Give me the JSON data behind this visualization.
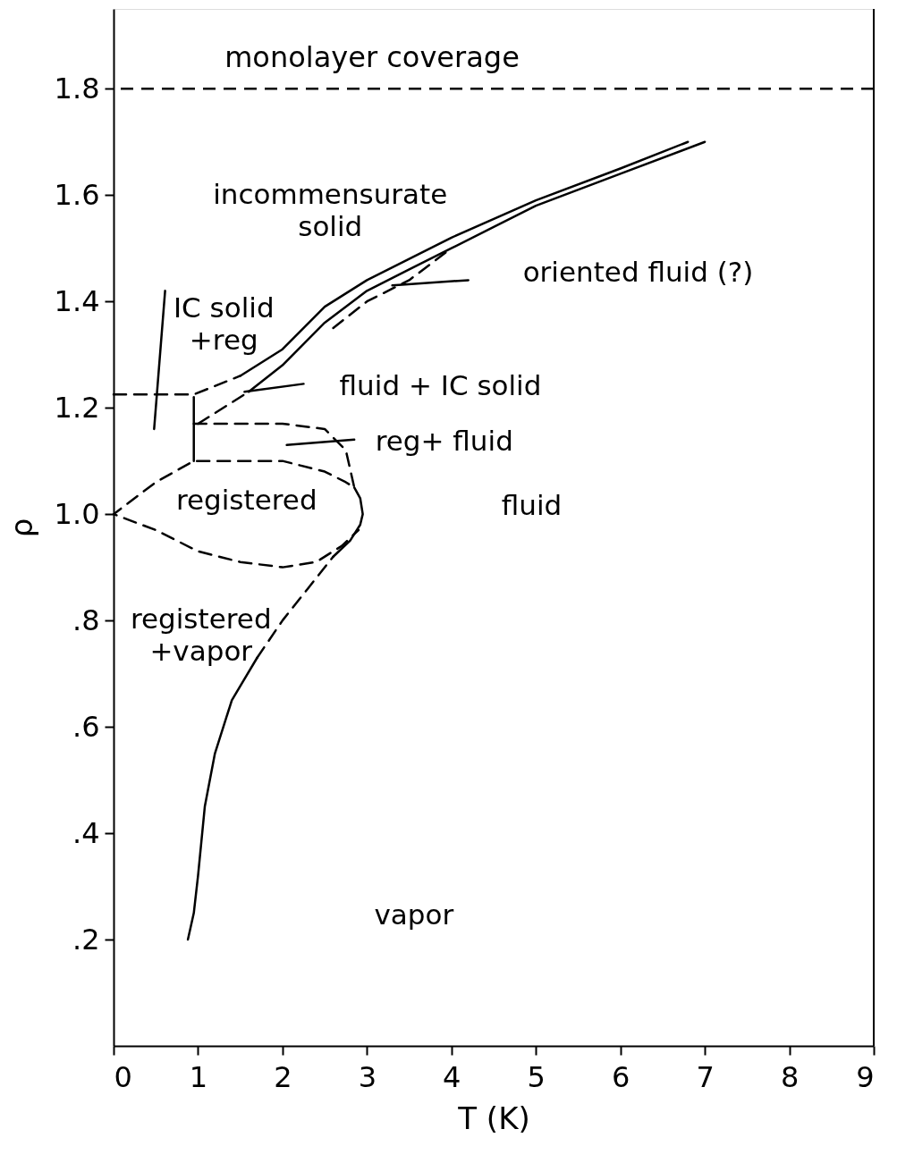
{
  "chart_data": {
    "type": "line",
    "xlabel": "T (K)",
    "ylabel": "ρ",
    "xlim": [
      0,
      9
    ],
    "ylim": [
      0,
      1.95
    ],
    "xticks": [
      0,
      1,
      2,
      3,
      4,
      5,
      6,
      7,
      8,
      9
    ],
    "yticks": [
      {
        "value": 0.2,
        "label": ".2"
      },
      {
        "value": 0.4,
        "label": ".4"
      },
      {
        "value": 0.6,
        "label": ".6"
      },
      {
        "value": 0.8,
        "label": ".8"
      },
      {
        "value": 1.0,
        "label": "1.0"
      },
      {
        "value": 1.2,
        "label": "1.2"
      },
      {
        "value": 1.4,
        "label": "1.4"
      },
      {
        "value": 1.6,
        "label": "1.6"
      },
      {
        "value": 1.8,
        "label": "1.8"
      }
    ],
    "grid": false,
    "marker": "none",
    "series": [
      {
        "line_style": "solid",
        "color": "#000000",
        "x": [
          0.88,
          0.95,
          1.0,
          1.08,
          1.2,
          1.4,
          1.7
        ],
        "values": [
          0.2,
          0.25,
          0.32,
          0.45,
          0.55,
          0.65,
          0.73
        ]
      },
      {
        "line_style": "dashed",
        "color": "#000000",
        "x": [
          1.7,
          2.0,
          2.3,
          2.6
        ],
        "values": [
          0.73,
          0.8,
          0.86,
          0.92
        ]
      },
      {
        "line_style": "solid",
        "color": "#000000",
        "x": [
          2.6,
          2.8,
          2.92,
          2.95,
          2.92,
          2.85
        ],
        "values": [
          0.92,
          0.95,
          0.98,
          1.0,
          1.03,
          1.05
        ]
      },
      {
        "line_style": "dashed",
        "color": "#000000",
        "x": [
          0.95,
          2.0,
          2.5,
          2.75,
          2.85,
          2.75,
          2.5,
          2.0,
          0.95,
          0.5,
          0,
          0.5,
          1.0,
          1.5,
          2.0,
          2.4,
          2.7,
          2.9
        ],
        "values": [
          1.17,
          1.17,
          1.16,
          1.12,
          1.05,
          1.06,
          1.08,
          1.1,
          1.1,
          1.06,
          1.0,
          0.97,
          0.93,
          0.91,
          0.9,
          0.91,
          0.94,
          0.97
        ]
      },
      {
        "line_style": "solid",
        "color": "#000000",
        "x": [
          0.95,
          0.95
        ],
        "values": [
          1.1,
          1.22
        ]
      },
      {
        "line_style": "dashed",
        "color": "#000000",
        "x": [
          0,
          0.95,
          1.5
        ],
        "values": [
          1.225,
          1.225,
          1.26
        ]
      },
      {
        "line_style": "dashed",
        "color": "#000000",
        "x": [
          1.0,
          1.6
        ],
        "values": [
          1.17,
          1.23
        ]
      },
      {
        "line_style": "solid",
        "color": "#000000",
        "x": [
          1.5,
          2.0,
          2.5,
          3.0,
          3.5,
          4.0,
          5.0,
          6.0,
          6.8
        ],
        "values": [
          1.26,
          1.31,
          1.39,
          1.44,
          1.48,
          1.52,
          1.59,
          1.65,
          1.7
        ]
      },
      {
        "line_style": "solid",
        "color": "#000000",
        "x": [
          1.6,
          2.0,
          2.5,
          3.0,
          3.5,
          4.0,
          5.0,
          6.0,
          7.0
        ],
        "values": [
          1.23,
          1.28,
          1.36,
          1.42,
          1.46,
          1.5,
          1.58,
          1.64,
          1.7
        ]
      },
      {
        "line_style": "dashed",
        "color": "#000000",
        "x": [
          2.6,
          3.0,
          3.5,
          4.0
        ],
        "values": [
          1.35,
          1.4,
          1.44,
          1.5
        ]
      },
      {
        "line_style": "solid",
        "color": "#000000",
        "x": [
          0.61,
          0.48
        ],
        "values": [
          1.42,
          1.16
        ]
      },
      {
        "line_style": "solid",
        "color": "#000000",
        "x": [
          3.3,
          4.2
        ],
        "values": [
          1.43,
          1.44
        ]
      },
      {
        "line_style": "solid",
        "color": "#000000",
        "x": [
          1.55,
          2.25
        ],
        "values": [
          1.23,
          1.245
        ]
      },
      {
        "line_style": "solid",
        "color": "#000000",
        "x": [
          2.05,
          2.85
        ],
        "values": [
          1.13,
          1.14
        ]
      }
    ],
    "ref_lines": [
      {
        "axis": "y",
        "value": 1.8,
        "label": "monolayer coverage",
        "line_style": "dashed",
        "color": "#000000"
      }
    ],
    "annotations": [
      "incommensurate\nsolid",
      "IC solid\n+reg",
      "oriented fluid (?)",
      "fluid + IC solid",
      "reg+ fluid",
      "fluid",
      "registered",
      "registered\n+vapor",
      "vapor"
    ]
  }
}
